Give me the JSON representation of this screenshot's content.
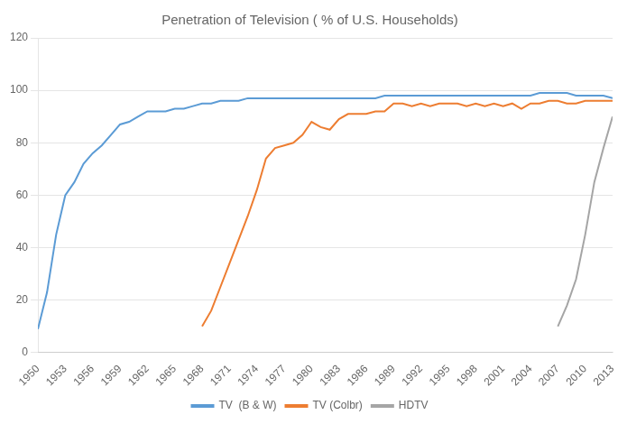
{
  "chart_data": {
    "type": "line",
    "title": "Penetration of Television ( % of U.S. Households)",
    "series": [
      {
        "name": "TV  (B & W)",
        "color": "#5B9BD5",
        "x": [
          1950,
          1951,
          1952,
          1953,
          1954,
          1955,
          1956,
          1957,
          1958,
          1959,
          1960,
          1961,
          1962,
          1963,
          1964,
          1965,
          1966,
          1967,
          1968,
          1969,
          1970,
          1971,
          1972,
          1973,
          1974,
          1975,
          1976,
          1977,
          1978,
          1979,
          1980,
          1981,
          1982,
          1983,
          1984,
          1985,
          1986,
          1987,
          1988,
          1989,
          1990,
          1991,
          1992,
          1993,
          1994,
          1995,
          1996,
          1997,
          1998,
          1999,
          2000,
          2001,
          2002,
          2003,
          2004,
          2005,
          2006,
          2007,
          2008,
          2009,
          2010,
          2011,
          2012,
          2013
        ],
        "values": [
          9,
          23,
          45,
          60,
          65,
          72,
          76,
          79,
          83,
          87,
          88,
          90,
          92,
          92,
          92,
          93,
          93,
          94,
          95,
          95,
          96,
          96,
          96,
          97,
          97,
          97,
          97,
          97,
          97,
          97,
          97,
          97,
          97,
          97,
          97,
          97,
          97,
          97,
          98,
          98,
          98,
          98,
          98,
          98,
          98,
          98,
          98,
          98,
          98,
          98,
          98,
          98,
          98,
          98,
          98,
          99,
          99,
          99,
          99,
          98,
          98,
          98,
          98,
          97
        ]
      },
      {
        "name": "TV (Colbr)",
        "color": "#ED7D31",
        "x": [
          1968,
          1969,
          1970,
          1971,
          1972,
          1973,
          1974,
          1975,
          1976,
          1977,
          1978,
          1979,
          1980,
          1981,
          1982,
          1983,
          1984,
          1985,
          1986,
          1987,
          1988,
          1989,
          1990,
          1991,
          1992,
          1993,
          1994,
          1995,
          1996,
          1997,
          1998,
          1999,
          2000,
          2001,
          2002,
          2003,
          2004,
          2005,
          2006,
          2007,
          2008,
          2009,
          2010,
          2011,
          2012,
          2013
        ],
        "values": [
          10,
          16,
          25,
          34,
          43,
          52,
          62,
          74,
          78,
          79,
          80,
          83,
          88,
          86,
          85,
          89,
          91,
          91,
          91,
          92,
          92,
          95,
          95,
          94,
          95,
          94,
          95,
          95,
          95,
          94,
          95,
          94,
          95,
          94,
          95,
          93,
          95,
          95,
          96,
          96,
          95,
          95,
          96,
          96,
          96,
          96
        ]
      },
      {
        "name": "HDTV",
        "color": "#A5A5A5",
        "x": [
          2007,
          2008,
          2009,
          2010,
          2011,
          2012,
          2013
        ],
        "values": [
          10,
          18,
          28,
          45,
          65,
          78,
          90
        ]
      }
    ],
    "xlim": [
      1950,
      2013
    ],
    "xticks": [
      1950,
      1953,
      1956,
      1959,
      1962,
      1965,
      1968,
      1971,
      1974,
      1977,
      1980,
      1983,
      1986,
      1989,
      1992,
      1995,
      1998,
      2001,
      2004,
      2007,
      2010,
      2013
    ],
    "ylim": [
      0,
      120
    ],
    "yticks": [
      0,
      20,
      40,
      60,
      80,
      100,
      120
    ],
    "grid": true,
    "legend": "bottom"
  }
}
